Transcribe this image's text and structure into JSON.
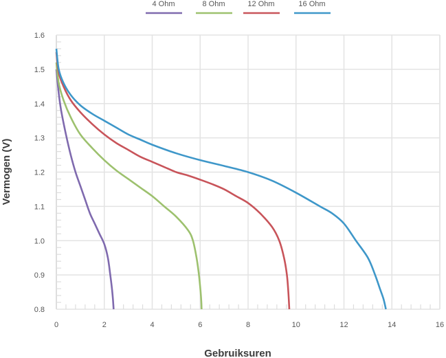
{
  "chart_data": {
    "type": "line",
    "title": "",
    "xlabel": "Gebruiksuren",
    "ylabel": "Vermogen (V)",
    "xlim": [
      0,
      16
    ],
    "ylim": [
      0.8,
      1.6
    ],
    "x_ticks": [
      0,
      2,
      4,
      6,
      8,
      10,
      12,
      14,
      16
    ],
    "y_ticks": [
      0.8,
      0.9,
      1.0,
      1.1,
      1.2,
      1.3,
      1.4,
      1.5,
      1.6
    ],
    "x_tick_labels": [
      "0",
      "2",
      "4",
      "6",
      "8",
      "10",
      "12",
      "14",
      "16"
    ],
    "y_tick_labels": [
      "0.8",
      "0.9",
      "1.0",
      "1.1",
      "1.2",
      "1.3",
      "1.4",
      "1.5",
      "1.6"
    ],
    "grid": true,
    "legend_position": "top-center",
    "series": [
      {
        "name": "4 Ohm",
        "color": "#7f6aae",
        "x": [
          0,
          0.1,
          0.2,
          0.4,
          0.6,
          0.8,
          1.0,
          1.2,
          1.4,
          1.6,
          1.8,
          2.0,
          2.15,
          2.25,
          2.32,
          2.36,
          2.38,
          2.39
        ],
        "y": [
          1.5,
          1.43,
          1.38,
          1.31,
          1.25,
          1.2,
          1.16,
          1.12,
          1.08,
          1.05,
          1.02,
          0.99,
          0.95,
          0.9,
          0.86,
          0.83,
          0.81,
          0.8
        ]
      },
      {
        "name": "8 Ohm",
        "color": "#9dc16e",
        "x": [
          0,
          0.1,
          0.3,
          0.6,
          1.0,
          1.5,
          2.0,
          2.5,
          3.0,
          3.5,
          4.0,
          4.5,
          5.0,
          5.5,
          5.7,
          5.85,
          5.95,
          6.02,
          6.05,
          6.06
        ],
        "y": [
          1.52,
          1.46,
          1.41,
          1.36,
          1.31,
          1.27,
          1.235,
          1.205,
          1.18,
          1.155,
          1.13,
          1.1,
          1.07,
          1.03,
          1.0,
          0.95,
          0.9,
          0.85,
          0.82,
          0.8
        ]
      },
      {
        "name": "12 Ohm",
        "color": "#c8545a",
        "x": [
          0,
          0.1,
          0.3,
          0.6,
          1.0,
          1.5,
          2.0,
          2.5,
          3.0,
          3.5,
          4.0,
          4.5,
          5.0,
          5.5,
          6.0,
          6.5,
          7.0,
          7.5,
          8.0,
          8.5,
          9.0,
          9.3,
          9.5,
          9.62,
          9.68,
          9.72
        ],
        "y": [
          1.55,
          1.49,
          1.45,
          1.41,
          1.375,
          1.34,
          1.31,
          1.285,
          1.265,
          1.245,
          1.23,
          1.215,
          1.2,
          1.19,
          1.178,
          1.165,
          1.15,
          1.13,
          1.11,
          1.08,
          1.04,
          1.0,
          0.95,
          0.9,
          0.85,
          0.8
        ]
      },
      {
        "name": "16 Ohm",
        "color": "#3e97c9",
        "x": [
          0,
          0.1,
          0.3,
          0.6,
          1.0,
          1.5,
          2.0,
          2.5,
          3.0,
          3.5,
          4.0,
          5.0,
          6.0,
          7.0,
          8.0,
          9.0,
          10.0,
          11.0,
          11.5,
          12.0,
          12.5,
          13.0,
          13.3,
          13.5,
          13.65,
          13.75
        ],
        "y": [
          1.56,
          1.5,
          1.46,
          1.425,
          1.395,
          1.37,
          1.35,
          1.33,
          1.31,
          1.295,
          1.28,
          1.255,
          1.235,
          1.218,
          1.2,
          1.175,
          1.14,
          1.1,
          1.08,
          1.05,
          1.0,
          0.95,
          0.9,
          0.86,
          0.83,
          0.8
        ]
      }
    ]
  }
}
